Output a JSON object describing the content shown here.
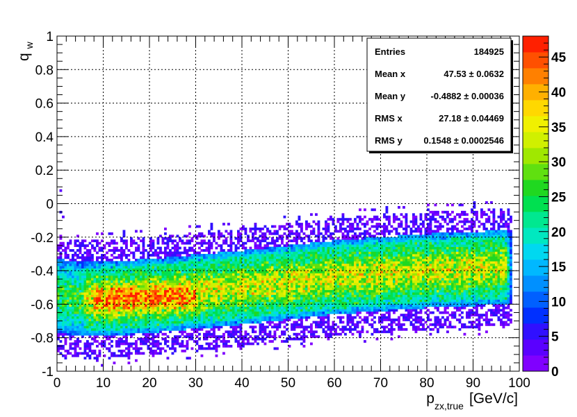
{
  "chart_data": {
    "type": "heatmap",
    "title": "",
    "xlabel": {
      "main": "p",
      "sub": "zx,true",
      "unit": "[GeV/c]"
    },
    "ylabel": {
      "main": "q",
      "sub": "w"
    },
    "xlim": [
      0,
      100
    ],
    "ylim": [
      -1,
      1
    ],
    "zlim": [
      0,
      48
    ],
    "grid": true,
    "x_ticks": [
      "0",
      "10",
      "20",
      "30",
      "40",
      "50",
      "60",
      "70",
      "80",
      "90",
      "100"
    ],
    "y_ticks": [
      "-1",
      "-0.8",
      "-0.6",
      "-0.4",
      "-0.2",
      "0",
      "0.2",
      "0.4",
      "0.6",
      "0.8",
      "1"
    ],
    "palette_ticks": [
      "0",
      "5",
      "10",
      "15",
      "20",
      "25",
      "30",
      "35",
      "40",
      "45"
    ],
    "palette": [
      "#8000ff",
      "#5a00ff",
      "#3010ff",
      "#0030ff",
      "#0060ff",
      "#0090ff",
      "#00b8ff",
      "#00d8f0",
      "#00e8c0",
      "#00e890",
      "#00e050",
      "#20d820",
      "#60e010",
      "#a0e800",
      "#d0f000",
      "#f0f000",
      "#ffd800",
      "#ffb000",
      "#ff8000",
      "#ff5000",
      "#ff2000"
    ],
    "distribution": {
      "band_center": {
        "x": [
          0,
          5,
          10,
          20,
          40,
          60,
          80,
          96
        ],
        "y": [
          -0.55,
          -0.57,
          -0.57,
          -0.55,
          -0.5,
          -0.44,
          -0.4,
          -0.38
        ]
      },
      "band_halfwidth": 0.22,
      "peak_region": {
        "x": [
          8,
          30
        ],
        "y": -0.57
      },
      "x_cutoff": 97
    },
    "stats": {
      "rows": [
        {
          "label": "Entries",
          "value": "184925"
        },
        {
          "label": "Mean x",
          "value": "47.53 ± 0.0632"
        },
        {
          "label": "Mean y",
          "value": "-0.4882 ± 0.00036"
        },
        {
          "label": "RMS x",
          "value": "27.18 ± 0.04469"
        },
        {
          "label": "RMS y",
          "value": "0.1548 ± 0.0002546"
        }
      ]
    }
  }
}
